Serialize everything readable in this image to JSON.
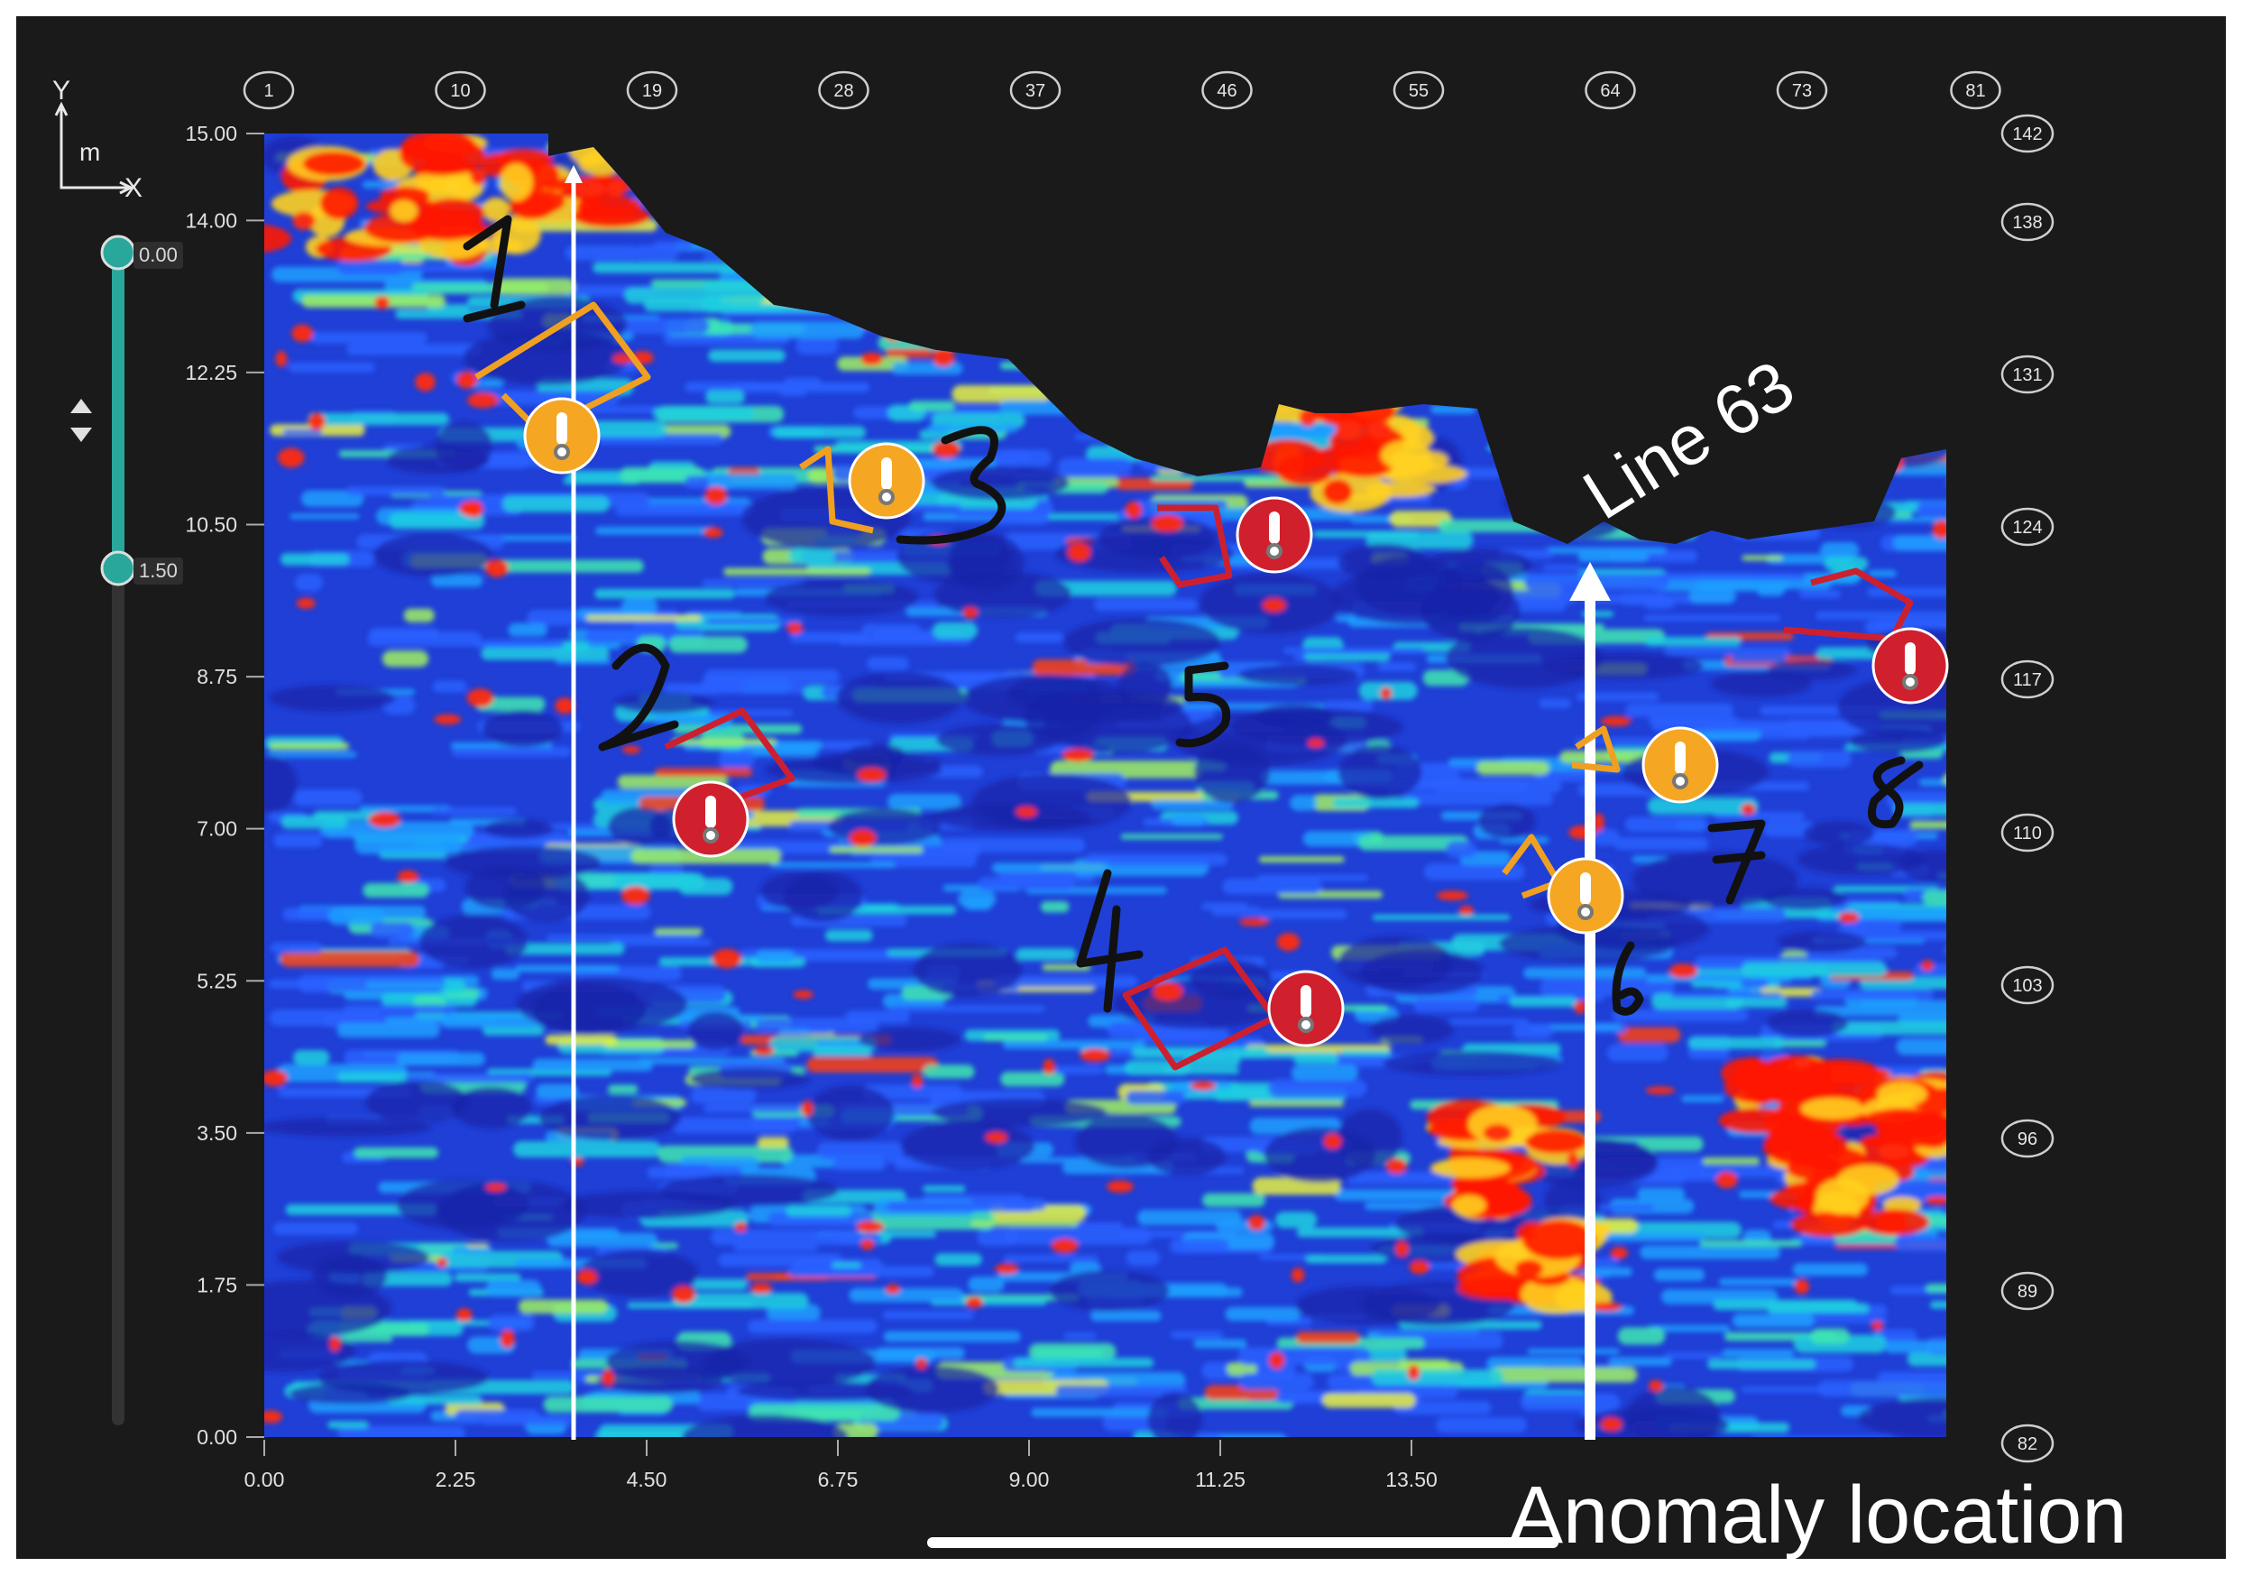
{
  "axis_indicator": {
    "y": "Y",
    "unit": "m",
    "x": "X"
  },
  "slider": {
    "top_value": "0.00",
    "bottom_value": "1.50"
  },
  "chart_data": {
    "type": "heatmap",
    "x_ticks": [
      "0.00",
      "2.25",
      "4.50",
      "6.75",
      "9.00",
      "11.25",
      "13.50"
    ],
    "y_ticks": [
      "15.00",
      "14.00",
      "12.25",
      "10.50",
      "8.75",
      "7.00",
      "5.25",
      "3.50",
      "1.75",
      "0.00"
    ],
    "top_line_numbers": [
      "1",
      "10",
      "19",
      "28",
      "37",
      "46",
      "55",
      "64",
      "73",
      "81"
    ],
    "right_line_numbers": [
      "142",
      "138",
      "131",
      "124",
      "117",
      "110",
      "103",
      "96",
      "89",
      "82"
    ],
    "xlim": [
      0,
      20.25
    ],
    "ylim": [
      0,
      15
    ],
    "colormap": "jet",
    "annotations": [
      "Line 63",
      "Anomaly location"
    ],
    "handwritten_marks": [
      "1",
      "2",
      "3",
      "4",
      "5",
      "6",
      "7",
      "8"
    ]
  },
  "colors": {
    "background": "#1a1a1a",
    "heat_low": "#1f2bc8",
    "heat_high": "#ff1a00",
    "marker_orange": "#f5a623",
    "marker_red": "#d0202e",
    "slider_track": "#2aa79b"
  },
  "markers": [
    {
      "type": "orange"
    },
    {
      "type": "orange"
    },
    {
      "type": "red"
    },
    {
      "type": "red"
    },
    {
      "type": "red"
    },
    {
      "type": "red"
    },
    {
      "type": "orange"
    },
    {
      "type": "orange"
    }
  ]
}
